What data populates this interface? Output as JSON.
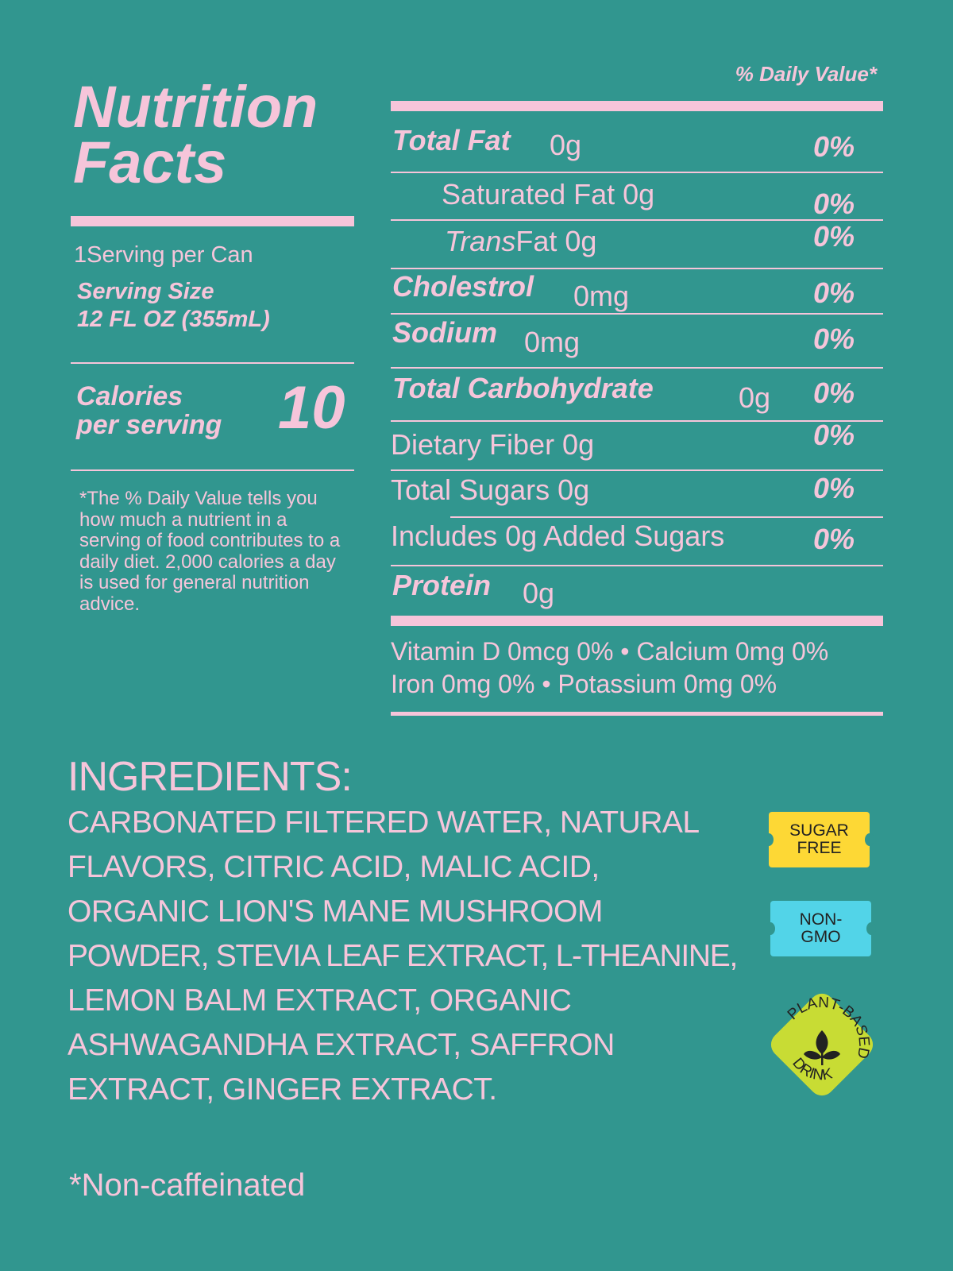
{
  "title": [
    "Nutrition",
    "Facts"
  ],
  "daily_value_header": "% Daily Value*",
  "servings": "1Serving per Can",
  "serving_size_label": "Serving Size",
  "serving_size_value": "12 FL OZ (355mL)",
  "calories_label": [
    "Calories",
    "per serving"
  ],
  "calories_value": "10",
  "footnote": [
    "*The % Daily Value tells you",
    "how much a nutrient in a",
    "serving of food contributes to a",
    "daily diet. 2,000 calories a day",
    "is used for general nutrition",
    "advice."
  ],
  "nutrients": [
    {
      "label": "Total Fat",
      "amount": "0g",
      "dv": "0%"
    },
    {
      "label": "Saturated Fat 0g",
      "dv": "0%"
    },
    {
      "label_italic": "Trans",
      "label": "Fat 0g",
      "dv": "0%"
    },
    {
      "label": "Cholestrol",
      "amount": "0mg",
      "dv": "0%"
    },
    {
      "label": "Sodium",
      "amount": "0mg",
      "dv": "0%"
    },
    {
      "label": "Total Carbohydrate",
      "amount": "0g",
      "dv": "0%"
    },
    {
      "label": "Dietary Fiber 0g",
      "dv": "0%"
    },
    {
      "label": "Total Sugars 0g",
      "dv": "0%"
    },
    {
      "label": "Includes 0g Added Sugars",
      "dv": "0%"
    },
    {
      "label": "Protein",
      "amount": "0g"
    }
  ],
  "vitamins": [
    "Vitamin D 0mcg 0% • Calcium 0mg 0%",
    "Iron 0mg 0% • Potassium 0mg 0%"
  ],
  "ingredients_heading": "INGREDIENTS:",
  "ingredients_lines": [
    "CARBONATED FILTERED WATER, NATURAL",
    "FLAVORS, CITRIC ACID, MALIC ACID,",
    "ORGANIC LION'S MANE MUSHROOM",
    "POWDER, STEVIA LEAF EXTRACT, L-THEANINE,",
    "LEMON BALM EXTRACT, ORGANIC",
    "ASHWAGANDHA EXTRACT, SAFFRON",
    "EXTRACT, GINGER EXTRACT."
  ],
  "badges": {
    "sugar_free": [
      "SUGAR",
      "FREE"
    ],
    "non_gmo": [
      "NON-",
      "GMO"
    ],
    "plant_based": {
      "top": "PLANT-BASED",
      "bottom": "DRINK",
      "icon": "leaf-sprout-icon"
    }
  },
  "note": "*Non-caffeinated",
  "colors": {
    "background": "#31968f",
    "text": "#f6c5da",
    "sugar_free": "#fdd835",
    "non_gmo": "#52d4e8",
    "plant_based": "#c8dc34"
  }
}
